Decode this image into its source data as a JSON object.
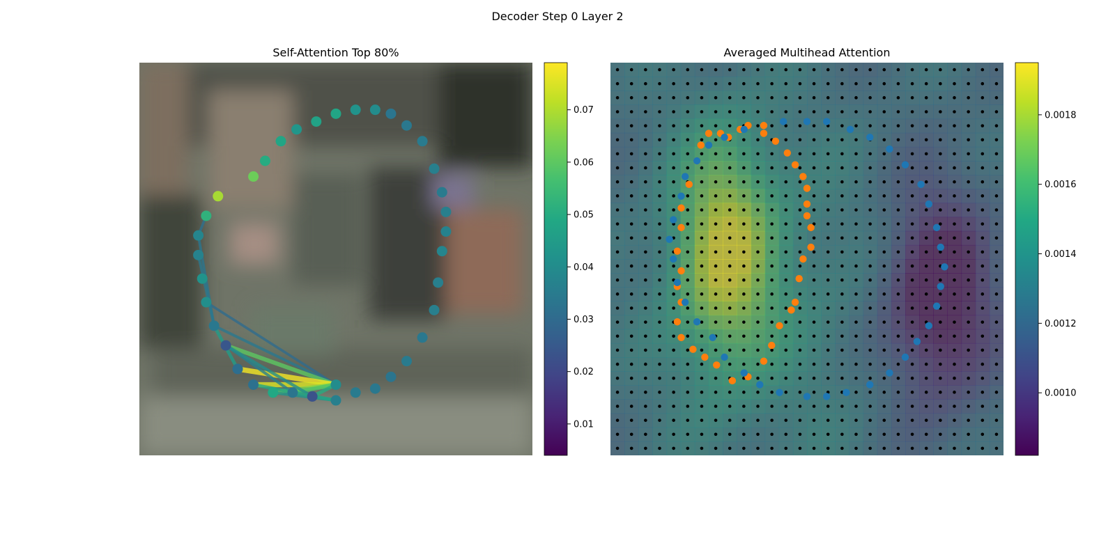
{
  "figure": {
    "suptitle": "Decoder Step 0 Layer 2"
  },
  "colors": {
    "orange": "#ff7f0e",
    "blue": "#1f77b4",
    "grid_dot": "#000000"
  },
  "chart_data": [
    {
      "type": "scatter",
      "title": "Self-Attention Top 80%",
      "colorbar": {
        "range": [
          0.004,
          0.079
        ],
        "ticks": [
          "0.01",
          "0.02",
          "0.03",
          "0.04",
          "0.05",
          "0.06",
          "0.07"
        ],
        "tick_values": [
          0.01,
          0.02,
          0.03,
          0.04,
          0.05,
          0.06,
          0.07
        ]
      },
      "points": [
        {
          "x": 0.5,
          "y": 0.82,
          "v": 0.04
        },
        {
          "x": 0.55,
          "y": 0.84,
          "v": 0.035
        },
        {
          "x": 0.6,
          "y": 0.83,
          "v": 0.034
        },
        {
          "x": 0.64,
          "y": 0.8,
          "v": 0.033
        },
        {
          "x": 0.68,
          "y": 0.76,
          "v": 0.035
        },
        {
          "x": 0.72,
          "y": 0.7,
          "v": 0.034
        },
        {
          "x": 0.75,
          "y": 0.63,
          "v": 0.036
        },
        {
          "x": 0.76,
          "y": 0.56,
          "v": 0.036
        },
        {
          "x": 0.77,
          "y": 0.48,
          "v": 0.038
        },
        {
          "x": 0.78,
          "y": 0.43,
          "v": 0.037
        },
        {
          "x": 0.78,
          "y": 0.38,
          "v": 0.036
        },
        {
          "x": 0.77,
          "y": 0.33,
          "v": 0.035
        },
        {
          "x": 0.75,
          "y": 0.27,
          "v": 0.036
        },
        {
          "x": 0.72,
          "y": 0.2,
          "v": 0.035
        },
        {
          "x": 0.68,
          "y": 0.16,
          "v": 0.034
        },
        {
          "x": 0.64,
          "y": 0.13,
          "v": 0.033
        },
        {
          "x": 0.6,
          "y": 0.12,
          "v": 0.04
        },
        {
          "x": 0.55,
          "y": 0.12,
          "v": 0.042
        },
        {
          "x": 0.5,
          "y": 0.13,
          "v": 0.048
        },
        {
          "x": 0.45,
          "y": 0.15,
          "v": 0.047
        },
        {
          "x": 0.4,
          "y": 0.17,
          "v": 0.043
        },
        {
          "x": 0.36,
          "y": 0.2,
          "v": 0.048
        },
        {
          "x": 0.32,
          "y": 0.25,
          "v": 0.05
        },
        {
          "x": 0.29,
          "y": 0.29,
          "v": 0.062
        },
        {
          "x": 0.2,
          "y": 0.34,
          "v": 0.069
        },
        {
          "x": 0.17,
          "y": 0.39,
          "v": 0.052
        },
        {
          "x": 0.15,
          "y": 0.44,
          "v": 0.038
        },
        {
          "x": 0.15,
          "y": 0.49,
          "v": 0.037
        },
        {
          "x": 0.16,
          "y": 0.55,
          "v": 0.042
        },
        {
          "x": 0.17,
          "y": 0.61,
          "v": 0.041
        },
        {
          "x": 0.19,
          "y": 0.67,
          "v": 0.034
        },
        {
          "x": 0.22,
          "y": 0.72,
          "v": 0.024
        },
        {
          "x": 0.25,
          "y": 0.78,
          "v": 0.031
        },
        {
          "x": 0.29,
          "y": 0.82,
          "v": 0.032
        },
        {
          "x": 0.34,
          "y": 0.84,
          "v": 0.049
        },
        {
          "x": 0.39,
          "y": 0.84,
          "v": 0.033
        },
        {
          "x": 0.44,
          "y": 0.85,
          "v": 0.023
        },
        {
          "x": 0.5,
          "y": 0.86,
          "v": 0.036
        }
      ],
      "connections": [
        {
          "from": 0,
          "to": 29,
          "v": 0.03
        },
        {
          "from": 0,
          "to": 30,
          "v": 0.034
        },
        {
          "from": 0,
          "to": 31,
          "v": 0.06
        },
        {
          "from": 0,
          "to": 32,
          "v": 0.078
        },
        {
          "from": 0,
          "to": 33,
          "v": 0.075
        },
        {
          "from": 0,
          "to": 34,
          "v": 0.065
        },
        {
          "from": 0,
          "to": 35,
          "v": 0.058
        },
        {
          "from": 0,
          "to": 36,
          "v": 0.05
        },
        {
          "from": 35,
          "to": 31,
          "v": 0.036
        },
        {
          "from": 36,
          "to": 31,
          "v": 0.04
        },
        {
          "from": 32,
          "to": 30,
          "v": 0.045
        },
        {
          "from": 25,
          "to": 26,
          "v": 0.032
        },
        {
          "from": 26,
          "to": 30,
          "v": 0.033
        },
        {
          "from": 27,
          "to": 30,
          "v": 0.034
        },
        {
          "from": 37,
          "to": 34,
          "v": 0.042
        },
        {
          "from": 37,
          "to": 33,
          "v": 0.048
        }
      ]
    },
    {
      "type": "heatmap",
      "title": "Averaged Multihead Attention",
      "colorbar": {
        "range": [
          0.00082,
          0.00195
        ],
        "ticks": [
          "0.0010",
          "0.0012",
          "0.0014",
          "0.0016",
          "0.0018"
        ],
        "tick_values": [
          0.001,
          0.0012,
          0.0014,
          0.0016,
          0.0018
        ]
      },
      "grid": {
        "rows": 28,
        "cols": 28
      },
      "series": [
        {
          "color": "orange",
          "points": [
            {
              "x": 0.3,
              "y": 0.19
            },
            {
              "x": 0.33,
              "y": 0.17
            },
            {
              "x": 0.35,
              "y": 0.16
            },
            {
              "x": 0.39,
              "y": 0.16
            },
            {
              "x": 0.39,
              "y": 0.18
            },
            {
              "x": 0.42,
              "y": 0.2
            },
            {
              "x": 0.45,
              "y": 0.23
            },
            {
              "x": 0.47,
              "y": 0.26
            },
            {
              "x": 0.49,
              "y": 0.29
            },
            {
              "x": 0.5,
              "y": 0.32
            },
            {
              "x": 0.5,
              "y": 0.36
            },
            {
              "x": 0.5,
              "y": 0.39
            },
            {
              "x": 0.51,
              "y": 0.42
            },
            {
              "x": 0.51,
              "y": 0.47
            },
            {
              "x": 0.49,
              "y": 0.5
            },
            {
              "x": 0.48,
              "y": 0.55
            },
            {
              "x": 0.47,
              "y": 0.61
            },
            {
              "x": 0.46,
              "y": 0.63
            },
            {
              "x": 0.43,
              "y": 0.67
            },
            {
              "x": 0.41,
              "y": 0.72
            },
            {
              "x": 0.39,
              "y": 0.76
            },
            {
              "x": 0.35,
              "y": 0.8
            },
            {
              "x": 0.31,
              "y": 0.81
            },
            {
              "x": 0.27,
              "y": 0.77
            },
            {
              "x": 0.24,
              "y": 0.75
            },
            {
              "x": 0.21,
              "y": 0.73
            },
            {
              "x": 0.18,
              "y": 0.7
            },
            {
              "x": 0.17,
              "y": 0.66
            },
            {
              "x": 0.18,
              "y": 0.61
            },
            {
              "x": 0.17,
              "y": 0.57
            },
            {
              "x": 0.18,
              "y": 0.53
            },
            {
              "x": 0.17,
              "y": 0.48
            },
            {
              "x": 0.18,
              "y": 0.42
            },
            {
              "x": 0.18,
              "y": 0.37
            },
            {
              "x": 0.2,
              "y": 0.31
            },
            {
              "x": 0.22,
              "y": 0.25
            },
            {
              "x": 0.23,
              "y": 0.21
            },
            {
              "x": 0.25,
              "y": 0.18
            },
            {
              "x": 0.28,
              "y": 0.18
            }
          ]
        },
        {
          "color": "blue",
          "points": [
            {
              "x": 0.44,
              "y": 0.15
            },
            {
              "x": 0.5,
              "y": 0.15
            },
            {
              "x": 0.55,
              "y": 0.15
            },
            {
              "x": 0.61,
              "y": 0.17
            },
            {
              "x": 0.66,
              "y": 0.19
            },
            {
              "x": 0.71,
              "y": 0.22
            },
            {
              "x": 0.75,
              "y": 0.26
            },
            {
              "x": 0.79,
              "y": 0.31
            },
            {
              "x": 0.81,
              "y": 0.36
            },
            {
              "x": 0.83,
              "y": 0.42
            },
            {
              "x": 0.84,
              "y": 0.47
            },
            {
              "x": 0.85,
              "y": 0.52
            },
            {
              "x": 0.84,
              "y": 0.57
            },
            {
              "x": 0.83,
              "y": 0.62
            },
            {
              "x": 0.81,
              "y": 0.67
            },
            {
              "x": 0.78,
              "y": 0.71
            },
            {
              "x": 0.75,
              "y": 0.75
            },
            {
              "x": 0.71,
              "y": 0.79
            },
            {
              "x": 0.66,
              "y": 0.82
            },
            {
              "x": 0.6,
              "y": 0.84
            },
            {
              "x": 0.55,
              "y": 0.85
            },
            {
              "x": 0.5,
              "y": 0.85
            },
            {
              "x": 0.43,
              "y": 0.84
            },
            {
              "x": 0.38,
              "y": 0.82
            },
            {
              "x": 0.34,
              "y": 0.79
            },
            {
              "x": 0.29,
              "y": 0.75
            },
            {
              "x": 0.26,
              "y": 0.7
            },
            {
              "x": 0.22,
              "y": 0.66
            },
            {
              "x": 0.19,
              "y": 0.61
            },
            {
              "x": 0.17,
              "y": 0.56
            },
            {
              "x": 0.16,
              "y": 0.5
            },
            {
              "x": 0.15,
              "y": 0.45
            },
            {
              "x": 0.16,
              "y": 0.4
            },
            {
              "x": 0.18,
              "y": 0.34
            },
            {
              "x": 0.19,
              "y": 0.29
            },
            {
              "x": 0.22,
              "y": 0.25
            },
            {
              "x": 0.25,
              "y": 0.21
            },
            {
              "x": 0.29,
              "y": 0.19
            },
            {
              "x": 0.34,
              "y": 0.17
            }
          ]
        }
      ]
    }
  ]
}
